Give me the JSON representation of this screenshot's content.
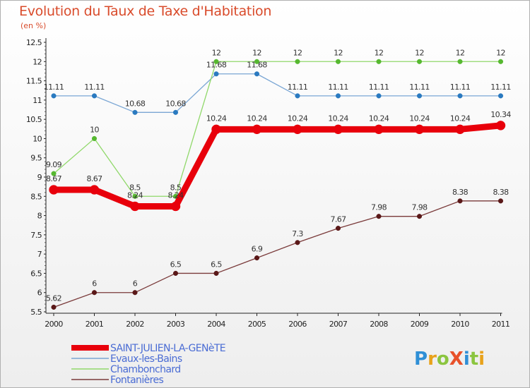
{
  "chart_data": {
    "type": "line",
    "title": "Evolution du Taux de Taxe d'Habitation",
    "subtitle": "(en %)",
    "xlabel": "",
    "ylabel": "",
    "categories": [
      "2000",
      "2001",
      "2002",
      "2003",
      "2004",
      "2005",
      "2006",
      "2007",
      "2008",
      "2009",
      "2010",
      "2011"
    ],
    "ylim": [
      5.5,
      12.5
    ],
    "yticks": [
      "5.5",
      "6",
      "6.5",
      "7",
      "7.5",
      "8",
      "8.5",
      "9",
      "9.5",
      "10",
      "10.5",
      "11",
      "11.5",
      "12",
      "12.5"
    ],
    "grid": false,
    "legend_position": "bottom-left",
    "series": [
      {
        "name": "SAINT-JULIEN-LA-GENèTE",
        "color": "#e8000b",
        "values": [
          8.67,
          8.67,
          8.24,
          8.24,
          10.24,
          10.24,
          10.24,
          10.24,
          10.24,
          10.24,
          10.24,
          10.34
        ],
        "labels": [
          "8.67",
          "8.67",
          "8.24",
          "8.24",
          "10.24",
          "10.24",
          "10.24",
          "10.24",
          "10.24",
          "10.24",
          "10.24",
          "10.34"
        ]
      },
      {
        "name": "Evaux-les-Bains",
        "color": "#7aa6d4",
        "values": [
          11.11,
          11.11,
          10.68,
          10.68,
          11.68,
          11.68,
          11.11,
          11.11,
          11.11,
          11.11,
          11.11,
          11.11
        ],
        "labels": [
          "11.11",
          "11.11",
          "10.68",
          "10.68",
          "11.68",
          "11.68",
          "11.11",
          "11.11",
          "11.11",
          "11.11",
          "11.11",
          "11.11"
        ]
      },
      {
        "name": "Chambonchard",
        "color": "#90d86a",
        "values": [
          9.09,
          10,
          8.5,
          8.5,
          12,
          12,
          12,
          12,
          12,
          12,
          12,
          12
        ],
        "labels": [
          "9.09",
          "10",
          "8.5",
          "8.5",
          "12",
          "12",
          "12",
          "12",
          "12",
          "12",
          "12",
          "12"
        ]
      },
      {
        "name": "Fontanières",
        "color": "#7a3a3a",
        "values": [
          5.62,
          6,
          6,
          6.5,
          6.5,
          6.9,
          7.3,
          7.67,
          7.98,
          7.98,
          8.38,
          8.38
        ],
        "labels": [
          "5.62",
          "6",
          "6",
          "6.5",
          "6.5",
          "6.9",
          "7.3",
          "7.67",
          "7.98",
          "7.98",
          "8.38",
          "8.38"
        ]
      }
    ]
  },
  "logo": {
    "text": "ProXiti"
  }
}
